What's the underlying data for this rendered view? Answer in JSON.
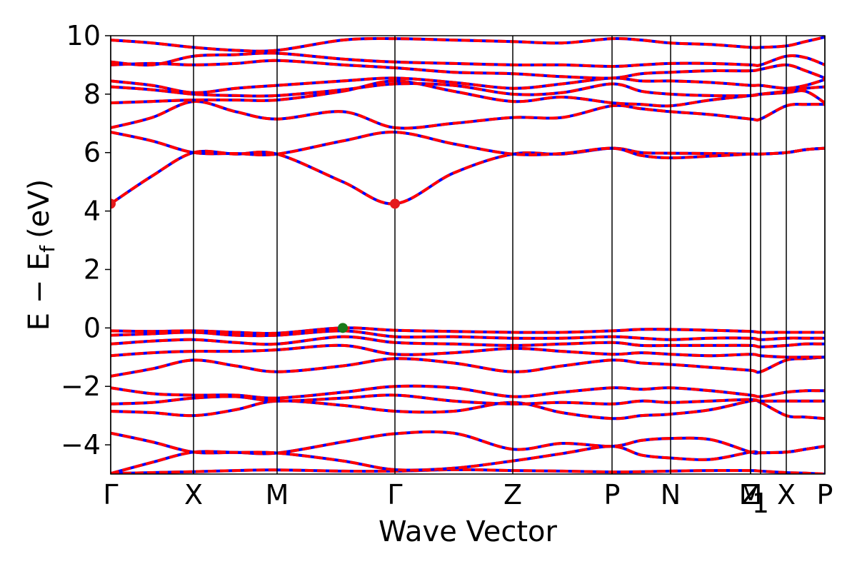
{
  "chart_data": {
    "type": "line",
    "title": "",
    "xlabel": "Wave Vector",
    "ylabel": "E − E",
    "ylabel_subscript": "f",
    "ylabel_unit": "(eV)",
    "ylim": [
      -5,
      10
    ],
    "yticks": [
      -4,
      -2,
      0,
      2,
      4,
      6,
      8,
      10
    ],
    "ytick_labels": [
      "−4",
      "−2",
      "0",
      "2",
      "4",
      "6",
      "8",
      "10"
    ],
    "grid": false,
    "legend": "none",
    "high_symmetry_points": [
      {
        "label": "Γ",
        "k": 0.0
      },
      {
        "label": "X",
        "k": 0.116
      },
      {
        "label": "M",
        "k": 0.233
      },
      {
        "label": "Γ",
        "k": 0.398
      },
      {
        "label": "Z",
        "k": 0.563
      },
      {
        "label": "P",
        "k": 0.702
      },
      {
        "label": "N",
        "k": 0.784
      },
      {
        "label": "M",
        "k": 0.896
      },
      {
        "label": "Z",
        "k": 0.896
      },
      {
        "label": "1",
        "k": 0.91
      },
      {
        "label": "X",
        "k": 0.946
      },
      {
        "label": "P",
        "k": 1.0
      }
    ],
    "extrema": [
      {
        "name": "CBM",
        "k": 0.0,
        "energy": 4.25,
        "color": "#e41a1c"
      },
      {
        "name": "CBM",
        "k": 0.398,
        "energy": 4.25,
        "color": "#e41a1c"
      },
      {
        "name": "VBM",
        "k": 0.325,
        "energy": 0.0,
        "color": "#1a7a1a"
      }
    ],
    "colors": {
      "spin_up": "#ff0000",
      "spin_down": "#0000ff",
      "frame": "#000000"
    },
    "series_k": [
      0,
      0.058,
      0.116,
      0.175,
      0.233,
      0.325,
      0.398,
      0.48,
      0.563,
      0.632,
      0.702,
      0.743,
      0.784,
      0.84,
      0.896,
      0.91,
      0.946,
      0.973,
      1.0
    ],
    "series": [
      {
        "values": [
          -4.98,
          -4.95,
          -4.92,
          -4.88,
          -4.86,
          -4.9,
          -4.9,
          -4.85,
          -4.88,
          -4.9,
          -4.93,
          -4.92,
          -4.9,
          -4.88,
          -4.88,
          -4.9,
          -4.95,
          -4.97,
          -5.0
        ]
      },
      {
        "values": [
          -3.6,
          -3.9,
          -4.25,
          -4.26,
          -4.28,
          -3.9,
          -3.62,
          -3.6,
          -4.15,
          -3.95,
          -4.05,
          -3.85,
          -3.78,
          -3.82,
          -4.25,
          -4.27,
          -4.25,
          -4.15,
          -4.05
        ]
      },
      {
        "values": [
          -4.98,
          -4.6,
          -4.25,
          -4.26,
          -4.28,
          -4.55,
          -4.85,
          -4.8,
          -4.55,
          -4.3,
          -4.05,
          -4.35,
          -4.45,
          -4.5,
          -4.25,
          -4.27,
          -4.25,
          -4.15,
          -4.05
        ]
      },
      {
        "values": [
          -2.85,
          -2.9,
          -3.0,
          -2.8,
          -2.5,
          -2.65,
          -2.85,
          -2.85,
          -2.55,
          -2.9,
          -3.1,
          -3.0,
          -2.95,
          -2.8,
          -2.5,
          -2.55,
          -3.0,
          -3.05,
          -3.1
        ]
      },
      {
        "values": [
          -2.05,
          -2.25,
          -2.3,
          -2.3,
          -2.4,
          -2.2,
          -2.0,
          -2.05,
          -2.35,
          -2.2,
          -2.05,
          -2.1,
          -2.05,
          -2.15,
          -2.3,
          -2.35,
          -2.2,
          -2.15,
          -2.15
        ]
      },
      {
        "values": [
          -2.6,
          -2.55,
          -2.4,
          -2.35,
          -2.5,
          -2.4,
          -2.3,
          -2.5,
          -2.6,
          -2.55,
          -2.6,
          -2.5,
          -2.55,
          -2.5,
          -2.45,
          -2.5,
          -2.5,
          -2.5,
          -2.5
        ]
      },
      {
        "values": [
          -1.65,
          -1.4,
          -1.1,
          -1.3,
          -1.5,
          -1.3,
          -1.05,
          -1.2,
          -1.5,
          -1.3,
          -1.1,
          -1.2,
          -1.25,
          -1.35,
          -1.45,
          -1.5,
          -1.1,
          -1.05,
          -1.0
        ]
      },
      {
        "values": [
          -0.95,
          -0.85,
          -0.8,
          -0.8,
          -0.75,
          -0.6,
          -0.9,
          -0.85,
          -0.7,
          -0.8,
          -0.9,
          -0.85,
          -0.9,
          -0.95,
          -0.9,
          -0.95,
          -1.0,
          -1.0,
          -1.0
        ]
      },
      {
        "values": [
          -0.55,
          -0.45,
          -0.4,
          -0.5,
          -0.55,
          -0.3,
          -0.5,
          -0.55,
          -0.6,
          -0.55,
          -0.5,
          -0.6,
          -0.6,
          -0.6,
          -0.6,
          -0.65,
          -0.6,
          -0.55,
          -0.55
        ]
      },
      {
        "values": [
          -0.25,
          -0.2,
          -0.15,
          -0.25,
          -0.25,
          -0.1,
          -0.3,
          -0.3,
          -0.35,
          -0.35,
          -0.3,
          -0.35,
          -0.4,
          -0.35,
          -0.35,
          -0.4,
          -0.35,
          -0.35,
          -0.35
        ]
      },
      {
        "values": [
          -0.1,
          -0.12,
          -0.1,
          -0.15,
          -0.18,
          0.0,
          -0.08,
          -0.12,
          -0.15,
          -0.15,
          -0.1,
          -0.05,
          -0.05,
          -0.08,
          -0.12,
          -0.15,
          -0.15,
          -0.15,
          -0.15
        ]
      },
      {
        "values": [
          4.25,
          5.2,
          6.0,
          5.95,
          5.95,
          5.0,
          4.25,
          5.3,
          5.95,
          5.95,
          6.15,
          6.0,
          5.98,
          5.97,
          5.95,
          5.95,
          6.0,
          6.1,
          6.15
        ]
      },
      {
        "values": [
          6.7,
          6.4,
          6.0,
          5.97,
          5.95,
          6.4,
          6.7,
          6.3,
          5.95,
          5.97,
          6.15,
          5.9,
          5.82,
          5.88,
          5.95,
          5.95,
          6.0,
          6.1,
          6.15
        ]
      },
      {
        "values": [
          6.85,
          7.2,
          7.75,
          7.4,
          7.15,
          7.4,
          6.85,
          7.0,
          7.2,
          7.2,
          7.6,
          7.5,
          7.4,
          7.3,
          7.15,
          7.15,
          7.6,
          7.65,
          7.65
        ]
      },
      {
        "values": [
          7.7,
          7.75,
          7.8,
          7.8,
          7.8,
          8.1,
          8.45,
          8.1,
          7.75,
          7.9,
          7.7,
          7.65,
          7.6,
          7.8,
          7.95,
          8.0,
          8.05,
          8.1,
          7.7
        ]
      },
      {
        "values": [
          8.25,
          8.15,
          8.0,
          7.95,
          7.95,
          8.15,
          8.35,
          8.3,
          8.0,
          8.05,
          8.35,
          8.1,
          8.0,
          7.95,
          7.95,
          8.0,
          8.1,
          8.2,
          8.25
        ]
      },
      {
        "values": [
          8.45,
          8.3,
          8.05,
          8.2,
          8.3,
          8.45,
          8.55,
          8.4,
          8.2,
          8.35,
          8.55,
          8.45,
          8.45,
          8.4,
          8.3,
          8.3,
          8.2,
          8.3,
          8.5
        ]
      },
      {
        "values": [
          9.0,
          9.05,
          9.0,
          9.05,
          9.15,
          9.0,
          8.9,
          8.75,
          8.7,
          8.6,
          8.55,
          8.7,
          8.75,
          8.8,
          8.8,
          8.85,
          9.0,
          8.8,
          8.55
        ]
      },
      {
        "values": [
          9.1,
          9.0,
          9.3,
          9.35,
          9.4,
          9.2,
          9.1,
          9.05,
          9.0,
          9.0,
          8.95,
          9.0,
          9.05,
          9.05,
          9.0,
          9.0,
          9.3,
          9.25,
          9.0
        ]
      },
      {
        "values": [
          9.85,
          9.75,
          9.6,
          9.5,
          9.5,
          9.85,
          9.9,
          9.85,
          9.8,
          9.75,
          9.9,
          9.85,
          9.75,
          9.7,
          9.6,
          9.6,
          9.65,
          9.8,
          9.95
        ]
      }
    ]
  }
}
